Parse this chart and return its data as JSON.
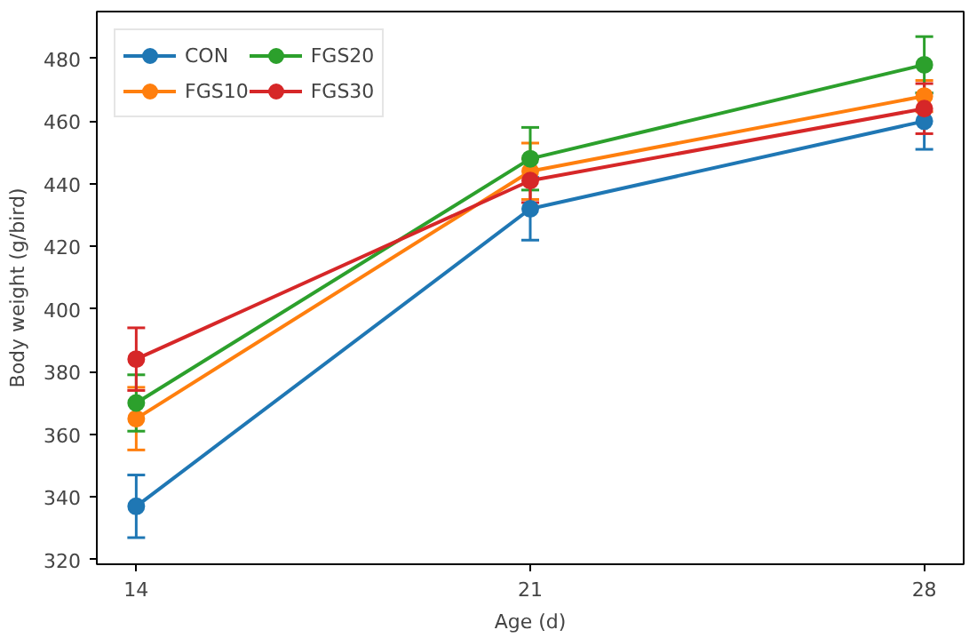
{
  "chart_data": {
    "type": "line",
    "xlabel": "Age (d)",
    "ylabel": "Body weight (g/bird)",
    "x": [
      14,
      21,
      28
    ],
    "xlim": [
      13.3,
      28.7
    ],
    "xticks": [
      14,
      21,
      28
    ],
    "ylim": [
      318.5,
      495
    ],
    "yticks": [
      320,
      340,
      360,
      380,
      400,
      420,
      440,
      460,
      480
    ],
    "marker": "circle",
    "legend": "top left",
    "grid": false,
    "series": [
      {
        "name": "CON",
        "color": "#1f77b4",
        "values": [
          337,
          432,
          460
        ],
        "errors": [
          10,
          10,
          9
        ]
      },
      {
        "name": "FGS10",
        "color": "#ff7f0e",
        "values": [
          365,
          444,
          468
        ],
        "errors": [
          10,
          9,
          5
        ]
      },
      {
        "name": "FGS20",
        "color": "#2ca02c",
        "values": [
          370,
          448,
          478
        ],
        "errors": [
          9,
          10,
          9
        ]
      },
      {
        "name": "FGS30",
        "color": "#d62728",
        "values": [
          384,
          441,
          464
        ],
        "errors": [
          10,
          7,
          8
        ]
      }
    ]
  }
}
